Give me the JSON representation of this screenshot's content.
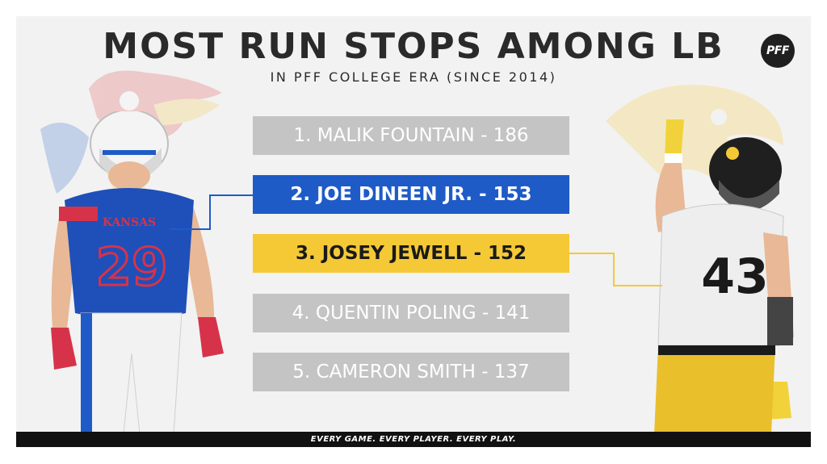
{
  "header": {
    "title": "MOST RUN STOPS AMONG LB",
    "subtitle": "IN PFF COLLEGE ERA (SINCE 2014)",
    "logo_text": "PFF"
  },
  "rankings": [
    {
      "label": "1. MALIK FOUNTAIN - 186",
      "style": "gray",
      "value": 186
    },
    {
      "label": "2. JOE DINEEN JR. - 153",
      "style": "blue",
      "value": 153
    },
    {
      "label": "3. JOSEY JEWELL - 152",
      "style": "gold",
      "value": 152
    },
    {
      "label": "4. QUENTIN POLING - 141",
      "style": "gray",
      "value": 141
    },
    {
      "label": "5. CAMERON SMITH - 137",
      "style": "gray",
      "value": 137
    }
  ],
  "players": {
    "left": {
      "jersey_text": "KANSAS",
      "number": "29"
    },
    "right": {
      "number": "43"
    }
  },
  "colors": {
    "blue": "#1e5bc6",
    "gold": "#f5c936",
    "gray": "#c4c4c4",
    "background": "#f2f2f2"
  },
  "footer": {
    "tagline": "EVERY GAME. EVERY PLAYER. EVERY PLAY."
  }
}
